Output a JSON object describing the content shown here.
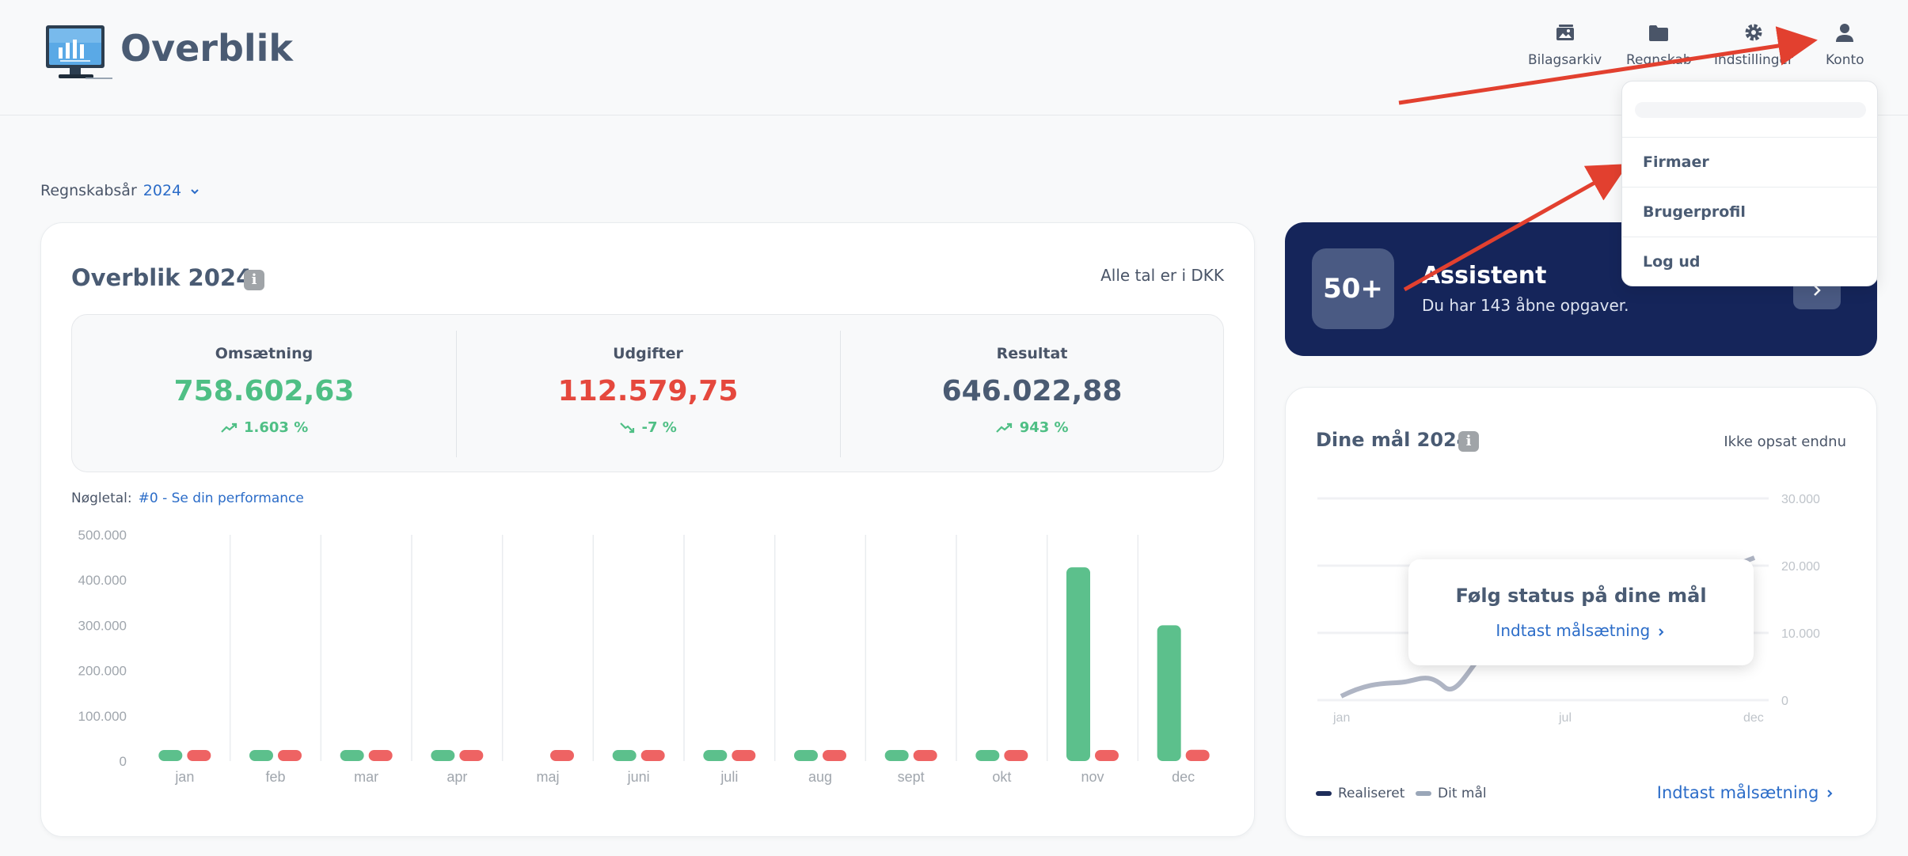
{
  "header": {
    "app_title": "Overblik",
    "nav": [
      {
        "label": "Bilagsarkiv",
        "icon": "image-archive-icon"
      },
      {
        "label": "Regnskab",
        "icon": "folder-icon"
      },
      {
        "label": "Indstillinger",
        "icon": "gear-icon"
      },
      {
        "label": "Konto",
        "icon": "user-icon"
      }
    ]
  },
  "year_selector": {
    "label": "Regnskabsår",
    "value": "2024"
  },
  "overview": {
    "title": "Overblik 2024",
    "info": "i",
    "currency_note": "Alle tal er i DKK",
    "kpis": [
      {
        "label": "Omsætning",
        "value": "758.602,63",
        "change": "1.603 %",
        "trend": "up",
        "color": "#4fbf85"
      },
      {
        "label": "Udgifter",
        "value": "112.579,75",
        "change": "-7 %",
        "trend": "down",
        "color": "#e5483d"
      },
      {
        "label": "Resultat",
        "value": "646.022,88",
        "change": "943 %",
        "trend": "up",
        "color": "#4a5b73"
      }
    ],
    "keyfigures_label": "Nøgletal:",
    "keyfigures_link": "#0 - Se din performance"
  },
  "chart_data": {
    "type": "bar",
    "categories": [
      "jan",
      "feb",
      "mar",
      "apr",
      "maj",
      "juni",
      "juli",
      "aug",
      "sept",
      "okt",
      "nov",
      "dec"
    ],
    "series": [
      {
        "color": "#5cc08c",
        "values": [
          3000,
          3000,
          3000,
          3000,
          0,
          3000,
          3000,
          3000,
          3000,
          3000,
          428000,
          300000
        ]
      },
      {
        "color": "#ee6363",
        "values": [
          8000,
          3000,
          3000,
          3000,
          3000,
          3000,
          3000,
          3000,
          3000,
          3000,
          3000,
          25000
        ]
      }
    ],
    "ylim": [
      0,
      500000
    ],
    "yticks": [
      "0",
      "100.000",
      "200.000",
      "300.000",
      "400.000",
      "500.000"
    ],
    "grid": "vertical"
  },
  "assistant": {
    "badge": "50+",
    "title": "Assistent",
    "subtitle": "Du har 143 åbne opgaver.",
    "button_icon": "chevron-right-icon"
  },
  "goals": {
    "title": "Dine mål 2024",
    "info": "i",
    "status": "Ikke opsat endnu",
    "popup_title": "Følg status på dine mål",
    "popup_link": "Indtast målsætning",
    "legend": [
      {
        "label": "Realiseret",
        "color": "#1e2d5a"
      },
      {
        "label": "Dit mål",
        "color": "#9aa6b8"
      }
    ],
    "link": "Indtast målsætning",
    "blurred_ticks": [
      "30.000",
      "20.000",
      "10.000",
      "0"
    ],
    "blurred_months": [
      "jan",
      "jul",
      "dec"
    ]
  },
  "account_menu": {
    "items": [
      "Firmaer",
      "Brugerprofil",
      "Log ud"
    ]
  },
  "colors": {
    "accent": "#2b6cc8",
    "navy": "#15255a",
    "annotation_arrow": "#e2402f"
  }
}
